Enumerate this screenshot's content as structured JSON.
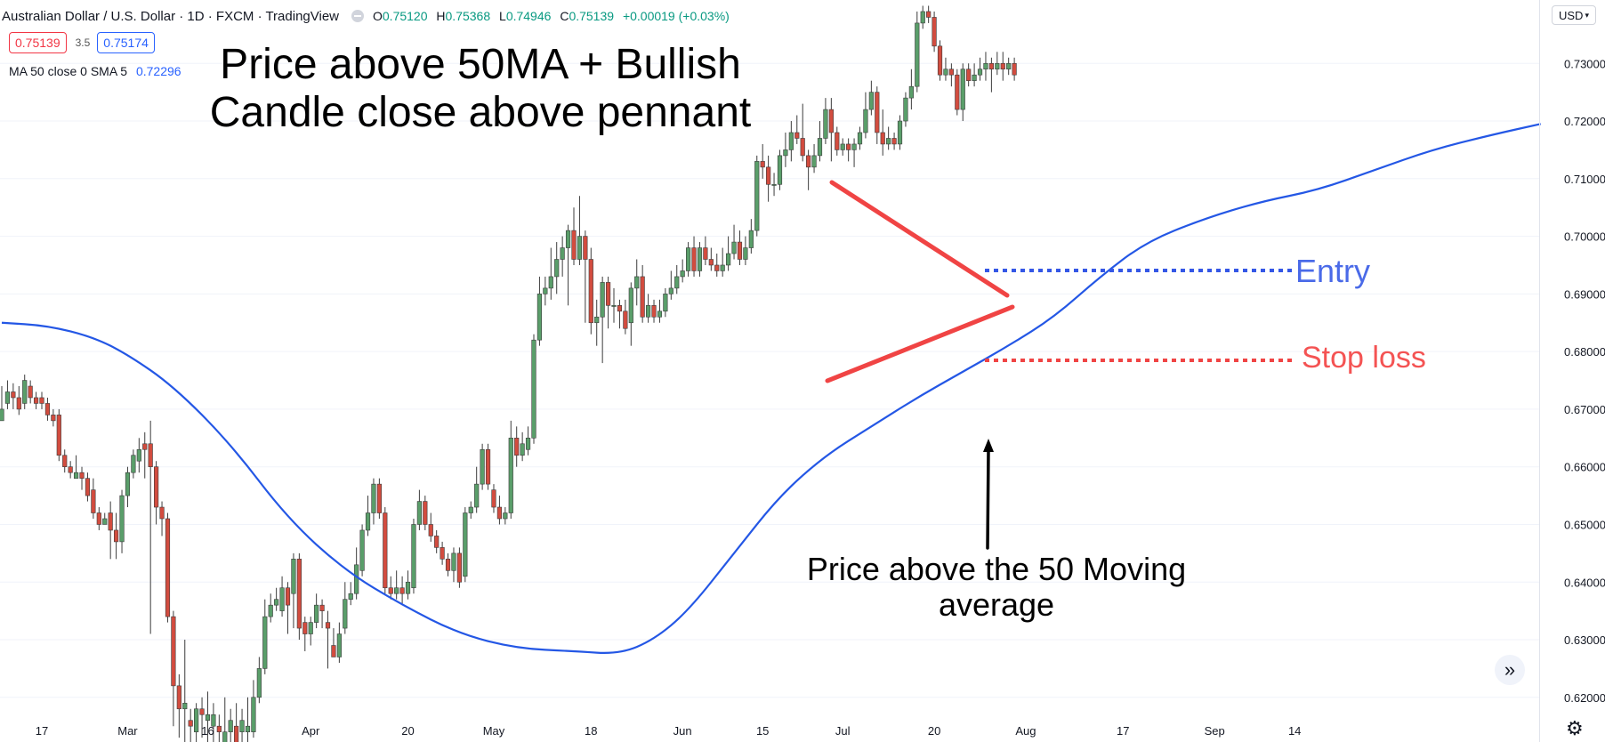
{
  "header": {
    "symbol": "Australian Dollar / U.S. Dollar · 1D · FXCM · TradingView",
    "ohlc": [
      {
        "key": "O",
        "value": "0.75120"
      },
      {
        "key": "H",
        "value": "0.75368"
      },
      {
        "key": "L",
        "value": "0.74946"
      },
      {
        "key": "C",
        "value": "0.75139"
      },
      {
        "key": "",
        "value": "+0.00019 (+0.03%)"
      }
    ],
    "sell_price": "0.75139",
    "spread": "3.5",
    "buy_price": "0.75174",
    "indicator_label": "MA 50 close 0 SMA 5",
    "indicator_value": "0.72296",
    "currency": "USD"
  },
  "annotations": {
    "title_line1": "Price above 50MA + Bullish",
    "title_line2": "Candle close above pennant",
    "ma_note_line1": "Price above the 50 Moving",
    "ma_note_line2": "average",
    "entry_label": "Entry",
    "stop_label": "Stop loss"
  },
  "colors": {
    "bull": "#5a9e6a",
    "bear": "#d24c3f",
    "ma_line": "#2457e5",
    "pennant": "#f04444",
    "entry": "#3457e6",
    "stop": "#f04444",
    "arrow": "#000000"
  },
  "icons": {
    "scroll": "double-chevron-right-icon",
    "settings": "gear-icon"
  },
  "chart_data": {
    "type": "candlestick",
    "x_ticks": [
      "17",
      "Mar",
      "16",
      "Apr",
      "20",
      "May",
      "18",
      "Jun",
      "15",
      "Jul",
      "20",
      "Aug",
      "17",
      "Sep",
      "14"
    ],
    "y_ticks": [
      "0.73000",
      "0.72000",
      "0.71000",
      "0.70000",
      "0.69000",
      "0.68000",
      "0.67000",
      "0.66000",
      "0.65000",
      "0.64000",
      "0.63000",
      "0.62000"
    ],
    "ylim": [
      0.6175,
      0.741
    ],
    "candles": [
      [
        0.668,
        0.67,
        0.669,
        0.674
      ],
      [
        0.671,
        0.673,
        0.67,
        0.675
      ],
      [
        0.673,
        0.672,
        0.67,
        0.6745
      ],
      [
        0.672,
        0.67,
        0.669,
        0.674
      ],
      [
        0.671,
        0.675,
        0.67,
        0.676
      ],
      [
        0.674,
        0.672,
        0.671,
        0.675
      ],
      [
        0.672,
        0.671,
        0.67,
        0.673
      ],
      [
        0.672,
        0.671,
        0.67,
        0.673
      ],
      [
        0.671,
        0.669,
        0.668,
        0.672
      ],
      [
        0.669,
        0.668,
        0.667,
        0.67
      ],
      [
        0.669,
        0.662,
        0.661,
        0.67
      ],
      [
        0.662,
        0.66,
        0.659,
        0.663
      ],
      [
        0.66,
        0.659,
        0.658,
        0.661
      ],
      [
        0.658,
        0.659,
        0.658,
        0.662
      ],
      [
        0.659,
        0.658,
        0.656,
        0.66
      ],
      [
        0.658,
        0.655,
        0.654,
        0.659
      ],
      [
        0.656,
        0.652,
        0.651,
        0.658
      ],
      [
        0.652,
        0.65,
        0.649,
        0.653
      ],
      [
        0.65,
        0.651,
        0.65,
        0.652
      ],
      [
        0.652,
        0.649,
        0.644,
        0.654
      ],
      [
        0.649,
        0.647,
        0.644,
        0.652
      ],
      [
        0.647,
        0.655,
        0.645,
        0.656
      ],
      [
        0.655,
        0.659,
        0.653,
        0.66
      ],
      [
        0.659,
        0.662,
        0.658,
        0.663
      ],
      [
        0.661,
        0.663,
        0.659,
        0.665
      ],
      [
        0.664,
        0.663,
        0.658,
        0.666
      ],
      [
        0.664,
        0.66,
        0.631,
        0.668
      ],
      [
        0.66,
        0.653,
        0.65,
        0.661
      ],
      [
        0.653,
        0.651,
        0.648,
        0.654
      ],
      [
        0.651,
        0.634,
        0.633,
        0.652
      ],
      [
        0.634,
        0.622,
        0.615,
        0.635
      ],
      [
        0.622,
        0.618,
        0.613,
        0.624
      ],
      [
        0.618,
        0.619,
        0.61,
        0.63
      ],
      [
        0.616,
        0.615,
        0.612,
        0.618
      ],
      [
        0.614,
        0.618,
        0.611,
        0.619
      ],
      [
        0.618,
        0.617,
        0.613,
        0.62
      ],
      [
        0.616,
        0.617,
        0.612,
        0.621
      ],
      [
        0.615,
        0.617,
        0.61,
        0.619
      ],
      [
        0.615,
        0.614,
        0.608,
        0.617
      ],
      [
        0.612,
        0.614,
        0.609,
        0.62
      ],
      [
        0.614,
        0.616,
        0.611,
        0.618
      ],
      [
        0.615,
        0.612,
        0.61,
        0.619
      ],
      [
        0.614,
        0.616,
        0.611,
        0.618
      ],
      [
        0.614,
        0.615,
        0.612,
        0.62
      ],
      [
        0.614,
        0.62,
        0.613,
        0.623
      ],
      [
        0.62,
        0.625,
        0.619,
        0.627
      ],
      [
        0.625,
        0.634,
        0.624,
        0.637
      ],
      [
        0.634,
        0.636,
        0.633,
        0.638
      ],
      [
        0.636,
        0.637,
        0.635,
        0.639
      ],
      [
        0.635,
        0.639,
        0.634,
        0.641
      ],
      [
        0.639,
        0.636,
        0.631,
        0.64
      ],
      [
        0.638,
        0.644,
        0.632,
        0.645
      ],
      [
        0.644,
        0.632,
        0.63,
        0.645
      ],
      [
        0.633,
        0.631,
        0.628,
        0.634
      ],
      [
        0.631,
        0.633,
        0.629,
        0.634
      ],
      [
        0.633,
        0.636,
        0.632,
        0.638
      ],
      [
        0.636,
        0.635,
        0.632,
        0.637
      ],
      [
        0.633,
        0.632,
        0.625,
        0.635
      ],
      [
        0.629,
        0.627,
        0.627,
        0.632
      ],
      [
        0.627,
        0.631,
        0.626,
        0.633
      ],
      [
        0.632,
        0.637,
        0.631,
        0.64
      ],
      [
        0.637,
        0.638,
        0.636,
        0.64
      ],
      [
        0.638,
        0.643,
        0.637,
        0.646
      ],
      [
        0.642,
        0.649,
        0.641,
        0.65
      ],
      [
        0.649,
        0.652,
        0.648,
        0.655
      ],
      [
        0.652,
        0.657,
        0.65,
        0.658
      ],
      [
        0.657,
        0.652,
        0.651,
        0.658
      ],
      [
        0.652,
        0.639,
        0.638,
        0.653
      ],
      [
        0.639,
        0.638,
        0.637,
        0.641
      ],
      [
        0.638,
        0.639,
        0.637,
        0.642
      ],
      [
        0.639,
        0.638,
        0.636,
        0.641
      ],
      [
        0.638,
        0.64,
        0.637,
        0.642
      ],
      [
        0.639,
        0.65,
        0.638,
        0.651
      ],
      [
        0.65,
        0.654,
        0.649,
        0.656
      ],
      [
        0.654,
        0.65,
        0.649,
        0.655
      ],
      [
        0.65,
        0.648,
        0.647,
        0.652
      ],
      [
        0.648,
        0.646,
        0.645,
        0.649
      ],
      [
        0.646,
        0.644,
        0.643,
        0.647
      ],
      [
        0.644,
        0.642,
        0.641,
        0.645
      ],
      [
        0.642,
        0.645,
        0.64,
        0.646
      ],
      [
        0.645,
        0.64,
        0.639,
        0.646
      ],
      [
        0.641,
        0.652,
        0.64,
        0.653
      ],
      [
        0.652,
        0.653,
        0.651,
        0.654
      ],
      [
        0.653,
        0.657,
        0.652,
        0.66
      ],
      [
        0.657,
        0.663,
        0.656,
        0.664
      ],
      [
        0.663,
        0.657,
        0.656,
        0.664
      ],
      [
        0.656,
        0.653,
        0.652,
        0.657
      ],
      [
        0.653,
        0.651,
        0.65,
        0.655
      ],
      [
        0.651,
        0.652,
        0.65,
        0.653
      ],
      [
        0.652,
        0.665,
        0.651,
        0.668
      ],
      [
        0.665,
        0.662,
        0.66,
        0.667
      ],
      [
        0.662,
        0.664,
        0.661,
        0.666
      ],
      [
        0.663,
        0.665,
        0.662,
        0.667
      ],
      [
        0.665,
        0.682,
        0.664,
        0.683
      ],
      [
        0.682,
        0.69,
        0.681,
        0.693
      ],
      [
        0.69,
        0.691,
        0.688,
        0.693
      ],
      [
        0.691,
        0.693,
        0.689,
        0.698
      ],
      [
        0.693,
        0.696,
        0.69,
        0.699
      ],
      [
        0.696,
        0.698,
        0.693,
        0.7
      ],
      [
        0.698,
        0.701,
        0.688,
        0.702
      ],
      [
        0.701,
        0.696,
        0.695,
        0.705
      ],
      [
        0.696,
        0.7,
        0.695,
        0.707
      ],
      [
        0.7,
        0.696,
        0.685,
        0.701
      ],
      [
        0.696,
        0.685,
        0.683,
        0.698
      ],
      [
        0.685,
        0.686,
        0.681,
        0.689
      ],
      [
        0.686,
        0.692,
        0.678,
        0.693
      ],
      [
        0.692,
        0.688,
        0.684,
        0.693
      ],
      [
        0.688,
        0.688,
        0.685,
        0.691
      ],
      [
        0.688,
        0.687,
        0.684,
        0.689
      ],
      [
        0.687,
        0.684,
        0.683,
        0.689
      ],
      [
        0.685,
        0.691,
        0.681,
        0.692
      ],
      [
        0.691,
        0.693,
        0.688,
        0.696
      ],
      [
        0.693,
        0.686,
        0.685,
        0.695
      ],
      [
        0.686,
        0.688,
        0.685,
        0.69
      ],
      [
        0.688,
        0.686,
        0.685,
        0.689
      ],
      [
        0.686,
        0.687,
        0.685,
        0.689
      ],
      [
        0.687,
        0.69,
        0.686,
        0.691
      ],
      [
        0.69,
        0.691,
        0.689,
        0.694
      ],
      [
        0.691,
        0.693,
        0.69,
        0.695
      ],
      [
        0.693,
        0.694,
        0.692,
        0.696
      ],
      [
        0.694,
        0.698,
        0.693,
        0.699
      ],
      [
        0.698,
        0.694,
        0.693,
        0.7
      ],
      [
        0.694,
        0.698,
        0.693,
        0.699
      ],
      [
        0.698,
        0.696,
        0.695,
        0.7
      ],
      [
        0.696,
        0.695,
        0.694,
        0.698
      ],
      [
        0.695,
        0.694,
        0.693,
        0.697
      ],
      [
        0.694,
        0.695,
        0.693,
        0.698
      ],
      [
        0.695,
        0.697,
        0.694,
        0.7
      ],
      [
        0.697,
        0.699,
        0.696,
        0.702
      ],
      [
        0.699,
        0.696,
        0.695,
        0.701
      ],
      [
        0.696,
        0.698,
        0.695,
        0.7
      ],
      [
        0.698,
        0.701,
        0.697,
        0.703
      ],
      [
        0.701,
        0.713,
        0.7,
        0.714
      ],
      [
        0.713,
        0.712,
        0.71,
        0.716
      ],
      [
        0.712,
        0.709,
        0.706,
        0.714
      ],
      [
        0.709,
        0.709,
        0.707,
        0.711
      ],
      [
        0.709,
        0.714,
        0.708,
        0.715
      ],
      [
        0.714,
        0.715,
        0.712,
        0.718
      ],
      [
        0.715,
        0.718,
        0.713,
        0.72
      ],
      [
        0.718,
        0.717,
        0.716,
        0.721
      ],
      [
        0.717,
        0.714,
        0.713,
        0.723
      ],
      [
        0.714,
        0.712,
        0.708,
        0.715
      ],
      [
        0.712,
        0.714,
        0.711,
        0.716
      ],
      [
        0.714,
        0.717,
        0.713,
        0.72
      ],
      [
        0.717,
        0.722,
        0.716,
        0.724
      ],
      [
        0.722,
        0.718,
        0.713,
        0.724
      ],
      [
        0.718,
        0.715,
        0.714,
        0.719
      ],
      [
        0.715,
        0.716,
        0.714,
        0.717
      ],
      [
        0.716,
        0.715,
        0.713,
        0.717
      ],
      [
        0.715,
        0.716,
        0.712,
        0.717
      ],
      [
        0.716,
        0.718,
        0.715,
        0.719
      ],
      [
        0.718,
        0.722,
        0.717,
        0.725
      ],
      [
        0.722,
        0.725,
        0.721,
        0.727
      ],
      [
        0.725,
        0.718,
        0.716,
        0.726
      ],
      [
        0.718,
        0.716,
        0.714,
        0.722
      ],
      [
        0.716,
        0.717,
        0.715,
        0.719
      ],
      [
        0.717,
        0.716,
        0.715,
        0.718
      ],
      [
        0.716,
        0.72,
        0.715,
        0.721
      ],
      [
        0.72,
        0.724,
        0.719,
        0.725
      ],
      [
        0.724,
        0.726,
        0.722,
        0.729
      ],
      [
        0.726,
        0.737,
        0.725,
        0.739
      ],
      [
        0.737,
        0.739,
        0.736,
        0.74
      ],
      [
        0.739,
        0.738,
        0.737,
        0.74
      ],
      [
        0.738,
        0.733,
        0.732,
        0.739
      ],
      [
        0.733,
        0.728,
        0.727,
        0.734
      ],
      [
        0.728,
        0.729,
        0.727,
        0.731
      ],
      [
        0.729,
        0.728,
        0.726,
        0.73
      ],
      [
        0.728,
        0.722,
        0.721,
        0.729
      ],
      [
        0.722,
        0.729,
        0.72,
        0.73
      ],
      [
        0.729,
        0.727,
        0.726,
        0.73
      ],
      [
        0.727,
        0.728,
        0.726,
        0.73
      ],
      [
        0.728,
        0.729,
        0.727,
        0.731
      ],
      [
        0.729,
        0.73,
        0.727,
        0.732
      ],
      [
        0.73,
        0.729,
        0.725,
        0.731
      ],
      [
        0.729,
        0.73,
        0.728,
        0.732
      ],
      [
        0.73,
        0.729,
        0.727,
        0.732
      ],
      [
        0.729,
        0.73,
        0.728,
        0.731
      ],
      [
        0.73,
        0.728,
        0.727,
        0.731
      ]
    ],
    "ma_series": [
      [
        0,
        0.685
      ],
      [
        8,
        0.6845
      ],
      [
        16,
        0.6825
      ],
      [
        22,
        0.6795
      ],
      [
        30,
        0.674
      ],
      [
        40,
        0.664
      ],
      [
        50,
        0.651
      ],
      [
        60,
        0.642
      ],
      [
        70,
        0.636
      ],
      [
        80,
        0.631
      ],
      [
        90,
        0.6285
      ],
      [
        100,
        0.628
      ],
      [
        108,
        0.6275
      ],
      [
        114,
        0.63
      ],
      [
        120,
        0.635
      ],
      [
        128,
        0.645
      ],
      [
        136,
        0.655
      ],
      [
        144,
        0.662
      ],
      [
        152,
        0.667
      ],
      [
        160,
        0.672
      ],
      [
        168,
        0.6765
      ],
      [
        176,
        0.681
      ],
      [
        184,
        0.686
      ],
      [
        192,
        0.693
      ],
      [
        200,
        0.699
      ],
      [
        210,
        0.703
      ],
      [
        220,
        0.706
      ],
      [
        230,
        0.708
      ],
      [
        240,
        0.7115
      ],
      [
        250,
        0.715
      ],
      [
        260,
        0.7175
      ],
      [
        269,
        0.7195
      ]
    ]
  }
}
